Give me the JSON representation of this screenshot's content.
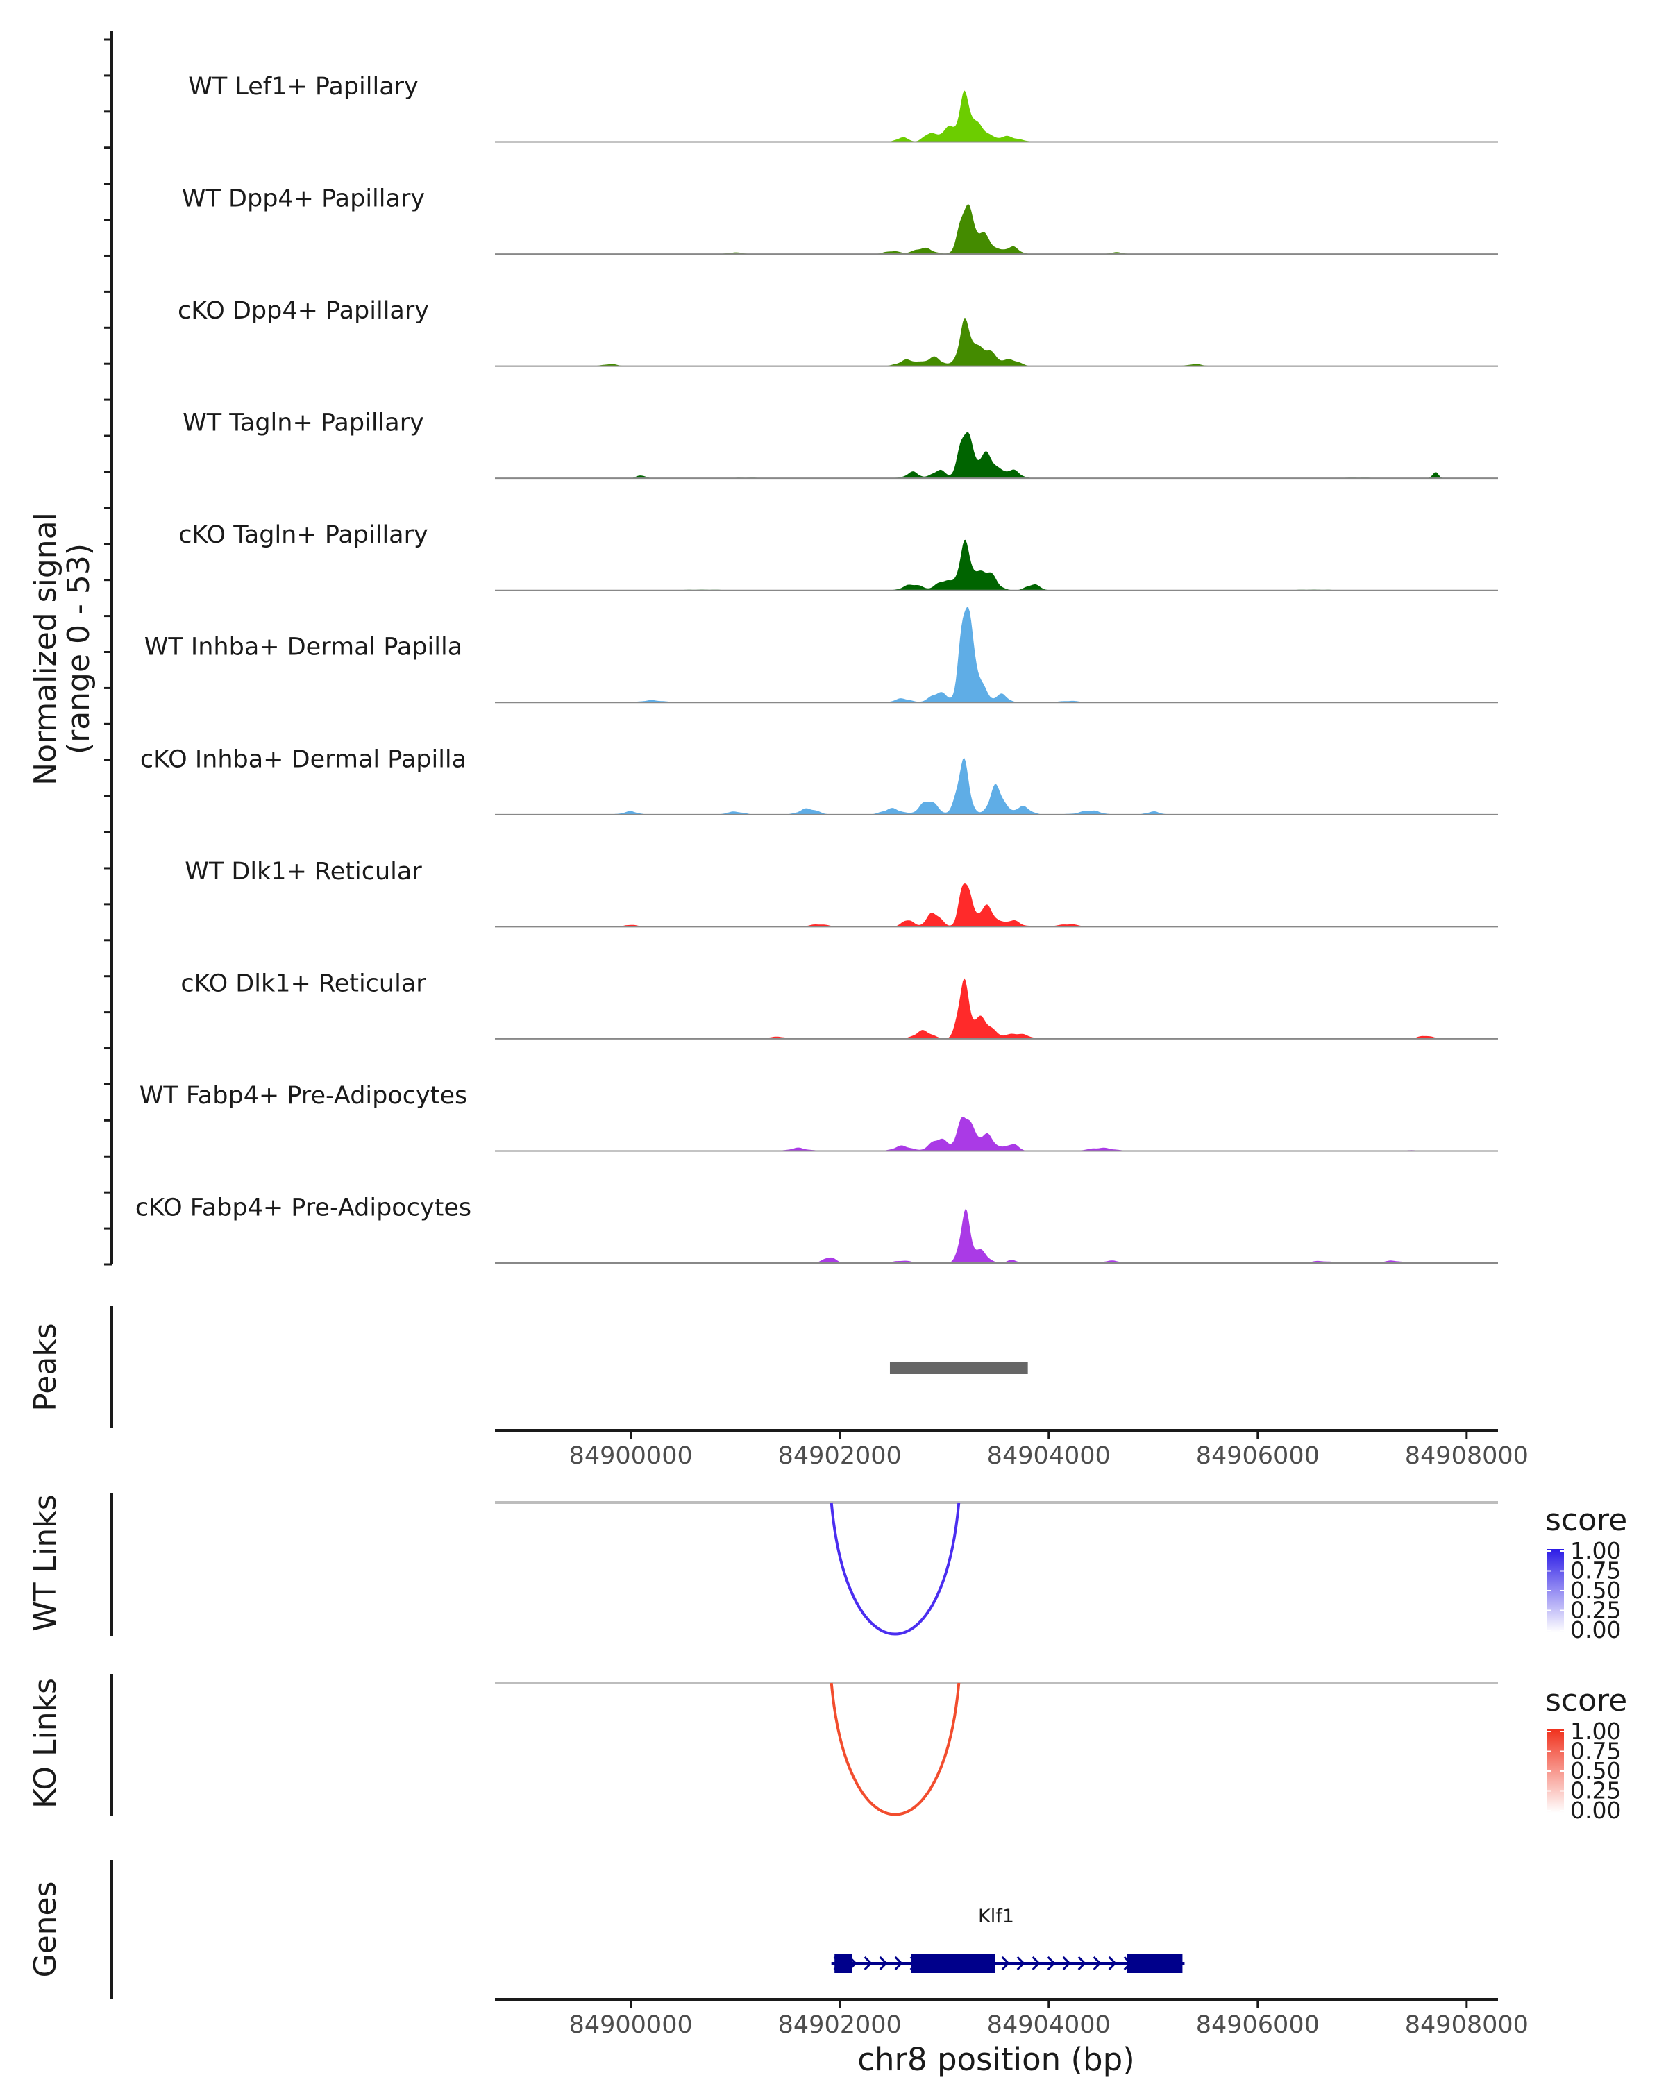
{
  "chart_data": {
    "type": "genome-browser",
    "chromosome": "chr8",
    "x_range_bp": [
      84898700,
      84908300
    ],
    "coverage": {
      "ylabel": "Normalized signal",
      "range_label": "(range 0 - 53)",
      "ylim": [
        0,
        53
      ],
      "peak_center_bp": 84903200,
      "tracks": [
        {
          "label": "WT Lef1+ Papillary",
          "color": "#6ccd00",
          "peak_max": 24,
          "bumps": [
            [
              84902600,
              2.2,
              80
            ],
            [
              84902850,
              4,
              70
            ],
            [
              84903050,
              7,
              120
            ],
            [
              84903200,
              20,
              70
            ],
            [
              84903330,
              8,
              110
            ],
            [
              84903600,
              2.5,
              130
            ]
          ]
        },
        {
          "label": "WT Dpp4+ Papillary",
          "color": "#448b00",
          "peak_max": 28,
          "bumps": [
            [
              84902500,
              1.5,
              100
            ],
            [
              84902800,
              3,
              120
            ],
            [
              84903200,
              22,
              80
            ],
            [
              84903350,
              10,
              130
            ],
            [
              84903650,
              3.5,
              90
            ],
            [
              84901000,
              0.8,
              100
            ],
            [
              84904650,
              0.8,
              80
            ]
          ]
        },
        {
          "label": "cKO Dpp4+ Papillary",
          "color": "#448b00",
          "peak_max": 26,
          "bumps": [
            [
              84902650,
              3,
              120
            ],
            [
              84902900,
              4,
              100
            ],
            [
              84903200,
              20,
              80
            ],
            [
              84903380,
              9,
              140
            ],
            [
              84903650,
              3,
              100
            ],
            [
              84899800,
              1,
              100
            ],
            [
              84905400,
              1,
              100
            ]
          ]
        },
        {
          "label": "WT Tagln+ Papillary",
          "color": "#006400",
          "peak_max": 30,
          "bumps": [
            [
              84902700,
              3,
              80
            ],
            [
              84902950,
              4,
              90
            ],
            [
              84903200,
              24,
              80
            ],
            [
              84903400,
              12,
              120
            ],
            [
              84903650,
              4,
              100
            ],
            [
              84900100,
              1.5,
              60
            ],
            [
              84907700,
              3,
              40
            ]
          ]
        },
        {
          "label": "cKO Tagln+ Papillary",
          "color": "#006400",
          "peak_max": 28,
          "bumps": [
            [
              84902700,
              3,
              120
            ],
            [
              84903000,
              5,
              100
            ],
            [
              84903200,
              22,
              80
            ],
            [
              84903400,
              10,
              120
            ],
            [
              84903850,
              3,
              90
            ]
          ]
        },
        {
          "label": "WT Inhba+ Dermal Papilla",
          "color": "#5fade6",
          "peak_max": 53,
          "bumps": [
            [
              84902600,
              2,
              100
            ],
            [
              84902950,
              5,
              110
            ],
            [
              84903200,
              46,
              70
            ],
            [
              84903300,
              16,
              100
            ],
            [
              84903550,
              4,
              80
            ],
            [
              84900200,
              0.8,
              120
            ],
            [
              84904200,
              0.8,
              140
            ]
          ]
        },
        {
          "label": "cKO Inhba+ Dermal Papilla",
          "color": "#5fade6",
          "peak_max": 38,
          "bumps": [
            [
              84901700,
              3,
              120
            ],
            [
              84902500,
              3,
              120
            ],
            [
              84902850,
              7,
              110
            ],
            [
              84903180,
              26,
              80
            ],
            [
              84903500,
              14,
              90
            ],
            [
              84903750,
              4,
              100
            ],
            [
              84900000,
              1.5,
              90
            ],
            [
              84901000,
              1.5,
              110
            ],
            [
              84904400,
              1.8,
              120
            ],
            [
              84905000,
              1.5,
              90
            ]
          ]
        },
        {
          "label": "WT Dlk1+ Reticular",
          "color": "#ff2a2a",
          "peak_max": 30,
          "bumps": [
            [
              84902650,
              3.5,
              70
            ],
            [
              84902900,
              7,
              90
            ],
            [
              84903200,
              24,
              70
            ],
            [
              84903400,
              10,
              110
            ],
            [
              84903650,
              3,
              90
            ],
            [
              84900000,
              1,
              80
            ],
            [
              84901800,
              1.2,
              120
            ],
            [
              84904200,
              1.2,
              120
            ]
          ]
        },
        {
          "label": "cKO Dlk1+ Reticular",
          "color": "#ff2a2a",
          "peak_max": 30,
          "bumps": [
            [
              84902800,
              4,
              110
            ],
            [
              84903180,
              26,
              70
            ],
            [
              84903350,
              10,
              130
            ],
            [
              84903700,
              2.5,
              140
            ],
            [
              84901400,
              1,
              140
            ],
            [
              84907600,
              1.5,
              90
            ]
          ]
        },
        {
          "label": "WT Fabp4+ Pre-Adipocytes",
          "color": "#aa3ae6",
          "peak_max": 24,
          "bumps": [
            [
              84902600,
              2.5,
              110
            ],
            [
              84902950,
              6,
              110
            ],
            [
              84903200,
              18,
              90
            ],
            [
              84903400,
              8,
              110
            ],
            [
              84903650,
              3.5,
              80
            ],
            [
              84901600,
              1.2,
              90
            ],
            [
              84904500,
              1.5,
              160
            ]
          ]
        },
        {
          "label": "cKO Fabp4+ Pre-Adipocytes",
          "color": "#aa3ae6",
          "peak_max": 30,
          "bumps": [
            [
              84901900,
              3,
              80
            ],
            [
              84903200,
              24,
              70
            ],
            [
              84903350,
              6,
              90
            ],
            [
              84903650,
              1.5,
              70
            ],
            [
              84902600,
              1.2,
              120
            ],
            [
              84904600,
              1.2,
              110
            ],
            [
              84906600,
              1,
              150
            ],
            [
              84907300,
              1,
              110
            ]
          ]
        }
      ]
    },
    "peaks": {
      "label": "Peaks",
      "regions": [
        {
          "start": 84902480,
          "end": 84903800
        }
      ],
      "color": "#666666"
    },
    "axis1": {
      "ticks": [
        84900000,
        84902000,
        84904000,
        84906000,
        84908000
      ],
      "tick_labels": [
        "84900000",
        "84902000",
        "84904000",
        "84906000",
        "84908000"
      ]
    },
    "links": [
      {
        "label": "WT Links",
        "start": 84901920,
        "end": 84903140,
        "score": 0.8,
        "color": "#4b2ef0",
        "legend": {
          "title": "score",
          "ticks": [
            "1.00",
            "0.75",
            "0.50",
            "0.25",
            "0.00"
          ],
          "high_color": "#2c1ce6",
          "low_color": "#ffffff"
        }
      },
      {
        "label": "KO Links",
        "start": 84901920,
        "end": 84903140,
        "score": 0.8,
        "color": "#f24d2e",
        "legend": {
          "title": "score",
          "ticks": [
            "1.00",
            "0.75",
            "0.50",
            "0.25",
            "0.00"
          ],
          "high_color": "#f0321e",
          "low_color": "#ffffff"
        }
      }
    ],
    "genes": {
      "label": "Genes",
      "gene_name": "Klf1",
      "color": "#00008b",
      "start": 84901920,
      "end": 84905300,
      "exons": [
        [
          84901950,
          84902120
        ],
        [
          84902680,
          84903490
        ],
        [
          84904750,
          84905280
        ]
      ],
      "strand": "+"
    },
    "axis2": {
      "ticks": [
        84900000,
        84902000,
        84904000,
        84906000,
        84908000
      ],
      "tick_labels": [
        "84900000",
        "84902000",
        "84904000",
        "84906000",
        "84908000"
      ],
      "xlabel": "chr8 position (bp)"
    }
  }
}
